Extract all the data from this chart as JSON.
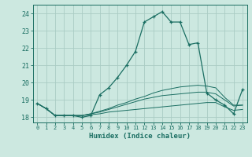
{
  "xlabel": "Humidex (Indice chaleur)",
  "ylabel": "",
  "background_color": "#cce8e0",
  "grid_color": "#aaccc4",
  "line_color": "#1a6e62",
  "xlim": [
    -0.5,
    23.5
  ],
  "ylim": [
    17.7,
    24.5
  ],
  "yticks": [
    18,
    19,
    20,
    21,
    22,
    23,
    24
  ],
  "xtick_labels": [
    "0",
    "1",
    "2",
    "3",
    "4",
    "5",
    "6",
    "7",
    "8",
    "9",
    "10",
    "11",
    "12",
    "13",
    "14",
    "15",
    "16",
    "17",
    "18",
    "19",
    "20",
    "21",
    "22",
    "23"
  ],
  "main_series": [
    18.8,
    18.5,
    18.1,
    18.1,
    18.1,
    18.0,
    18.1,
    19.3,
    19.7,
    20.3,
    21.0,
    21.8,
    23.5,
    23.8,
    24.1,
    23.5,
    23.5,
    22.2,
    22.3,
    19.4,
    19.0,
    18.7,
    18.2,
    19.6
  ],
  "line2": [
    18.8,
    18.5,
    18.1,
    18.1,
    18.1,
    18.1,
    18.15,
    18.2,
    18.3,
    18.35,
    18.4,
    18.45,
    18.5,
    18.55,
    18.6,
    18.65,
    18.7,
    18.75,
    18.8,
    18.85,
    18.85,
    18.6,
    18.4,
    18.45
  ],
  "line3": [
    18.8,
    18.5,
    18.1,
    18.1,
    18.1,
    18.1,
    18.2,
    18.3,
    18.45,
    18.6,
    18.75,
    18.9,
    19.05,
    19.15,
    19.25,
    19.3,
    19.35,
    19.4,
    19.45,
    19.45,
    19.35,
    19.0,
    18.65,
    18.7
  ],
  "line4": [
    18.8,
    18.5,
    18.1,
    18.1,
    18.1,
    18.1,
    18.2,
    18.35,
    18.5,
    18.7,
    18.85,
    19.05,
    19.2,
    19.4,
    19.55,
    19.65,
    19.75,
    19.8,
    19.85,
    19.8,
    19.7,
    19.15,
    18.7,
    18.7
  ]
}
